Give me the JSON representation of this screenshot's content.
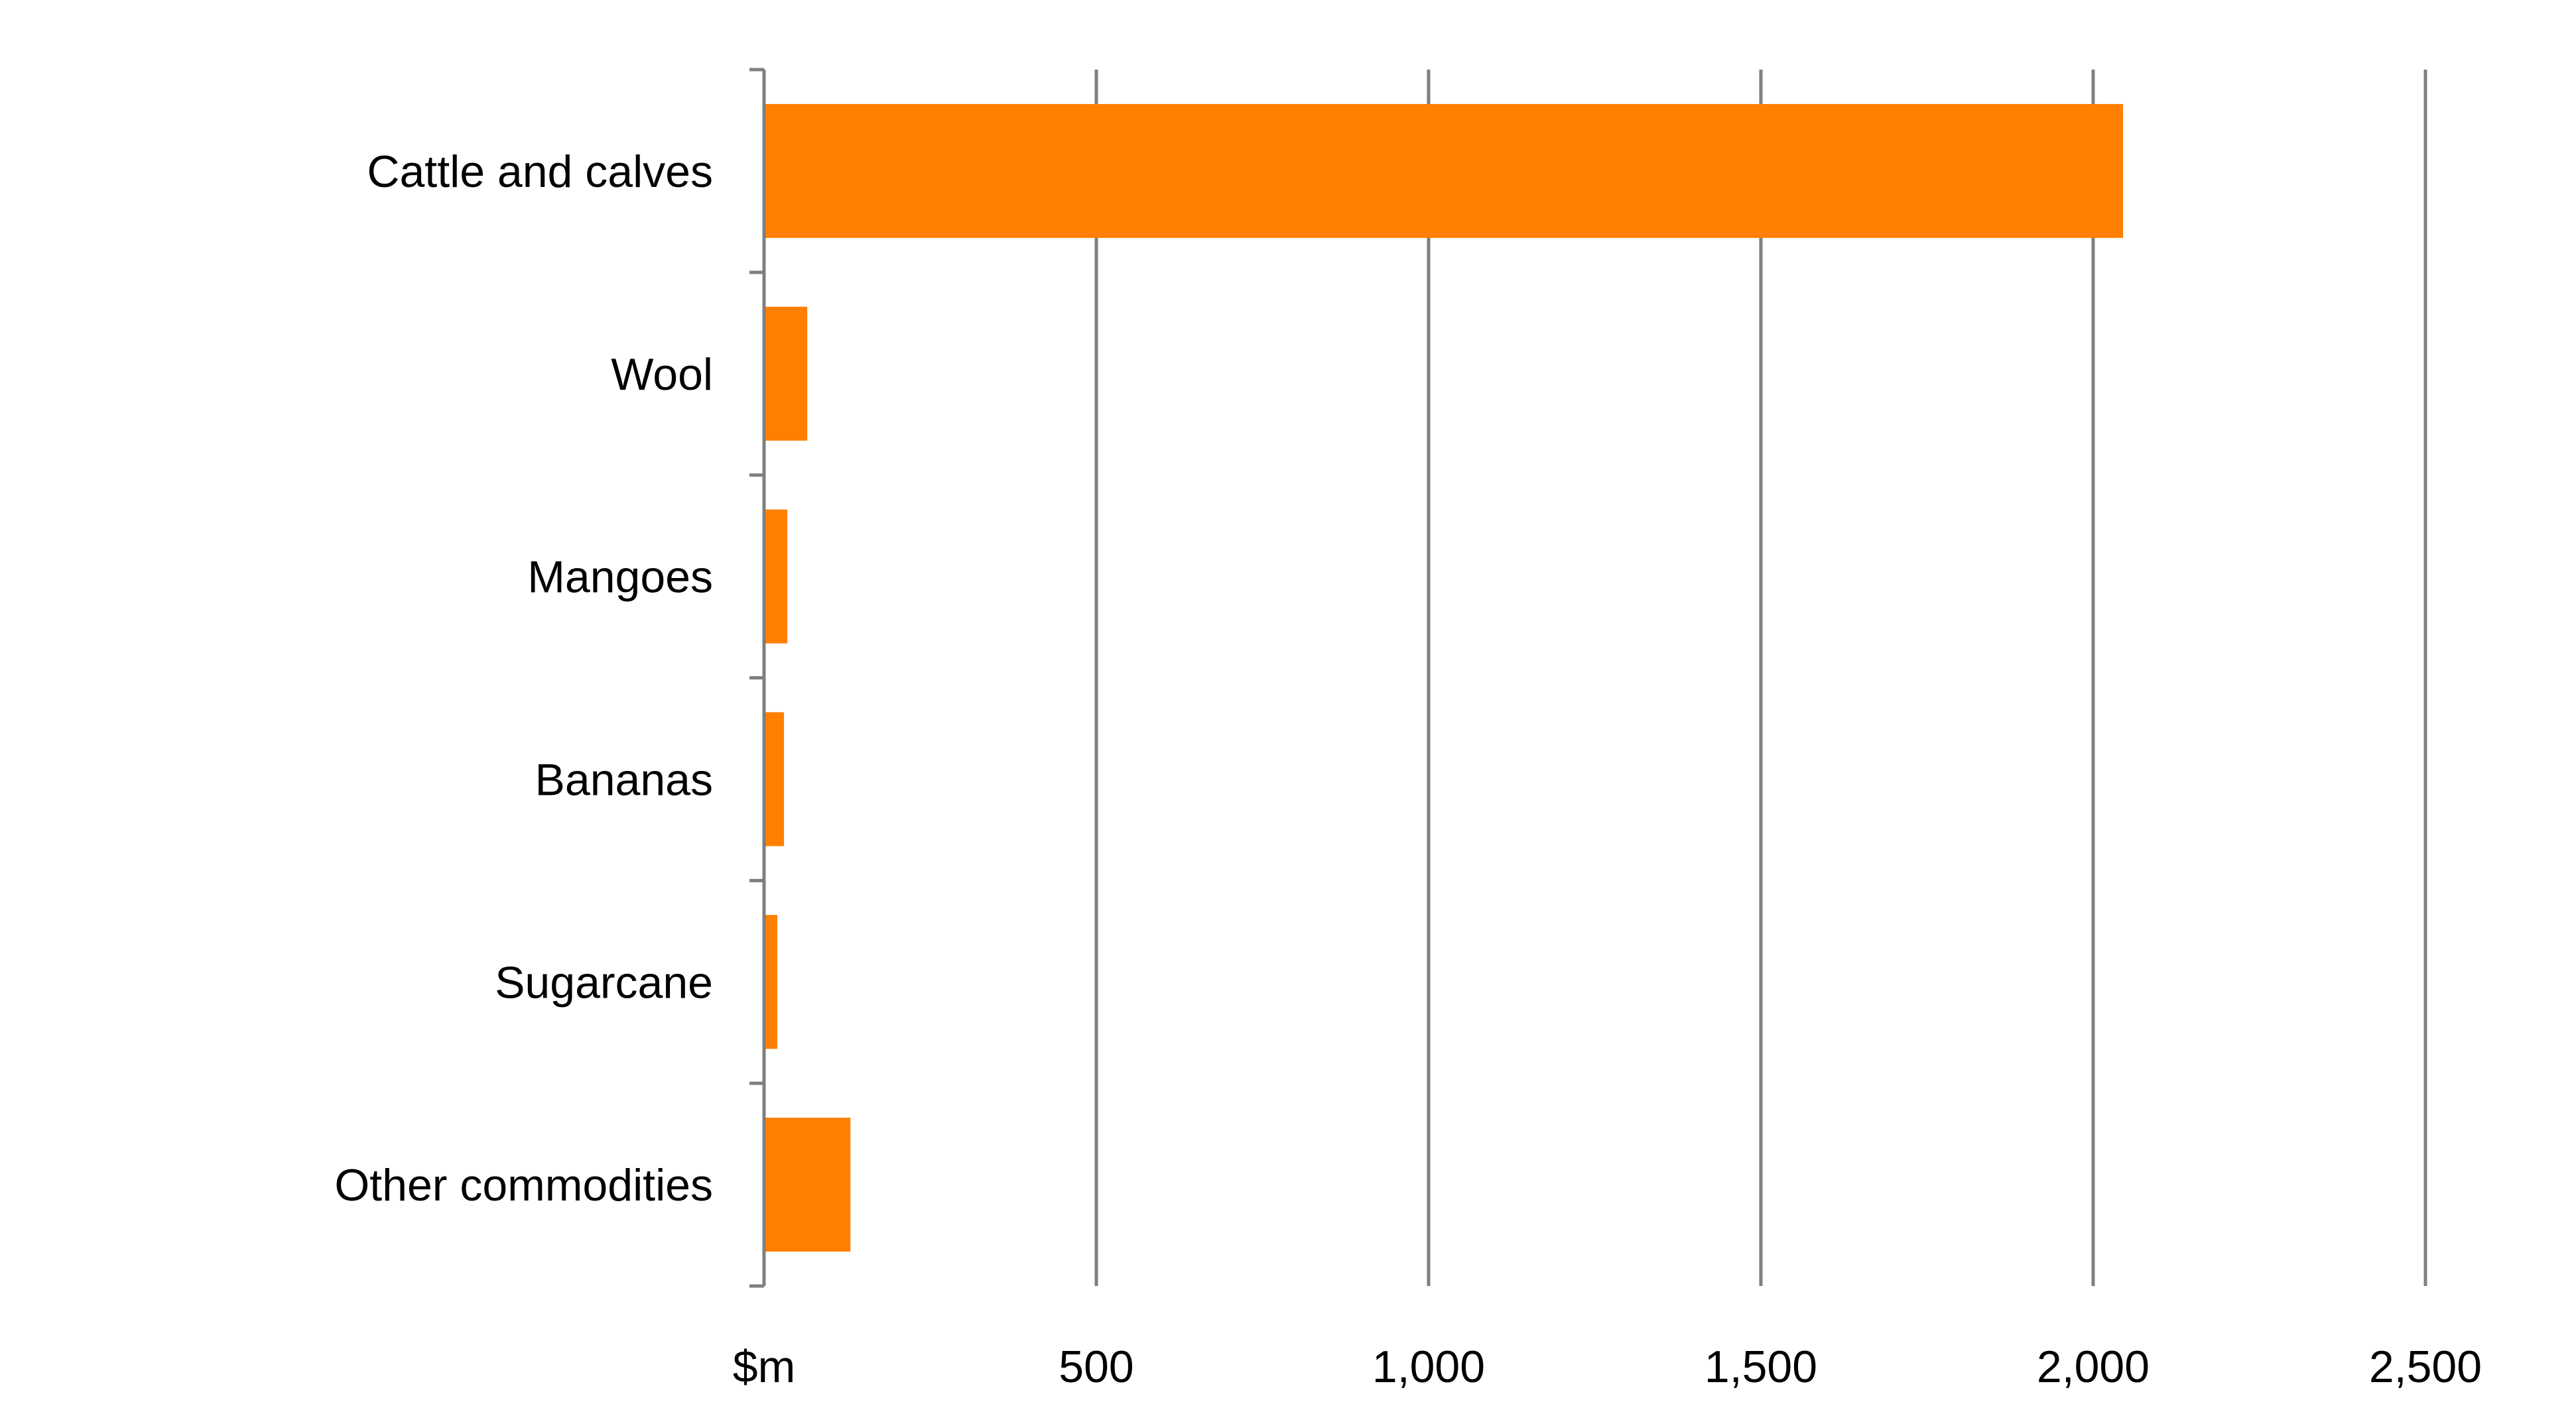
{
  "chart_data": {
    "type": "bar",
    "orientation": "horizontal",
    "categories": [
      "Cattle and calves",
      "Wool",
      "Mangoes",
      "Bananas",
      "Sugarcane",
      "Other commodities"
    ],
    "values": [
      2045,
      65,
      35,
      30,
      20,
      130
    ],
    "xlim": [
      0,
      2500
    ],
    "x_ticks": [
      0,
      500,
      1000,
      1500,
      2000,
      2500
    ],
    "x_tick_labels": [
      "$m",
      "500",
      "1,000",
      "1,500",
      "2,000",
      "2,500"
    ],
    "title": "",
    "xlabel": "",
    "ylabel": "",
    "grid": "vertical",
    "legend": "none",
    "bar_color": "#ff7f00",
    "grid_color": "#7f7f7f"
  }
}
